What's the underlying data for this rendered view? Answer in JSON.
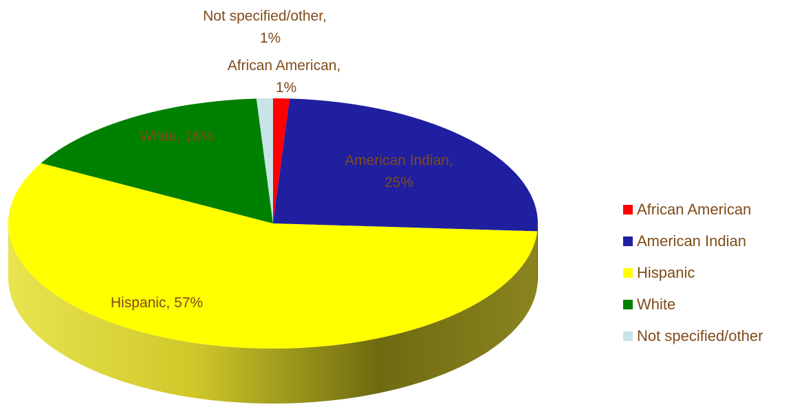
{
  "chart_data": {
    "type": "pie",
    "title": "",
    "three_d": true,
    "slices": [
      {
        "name": "African American",
        "value": 1,
        "color": "#ff0000",
        "side_color": "#b30000",
        "label_line1": "African American,",
        "label_line2": "1%"
      },
      {
        "name": "American Indian",
        "value": 25,
        "color": "#1f1fa0",
        "side_color": "#14146a",
        "label_line1": "American Indian,",
        "label_line2": "25%"
      },
      {
        "name": "Hispanic",
        "value": 57,
        "color": "#ffff00",
        "side_color": "#8a8400",
        "label_line1": "Hispanic, 57%",
        "label_line2": ""
      },
      {
        "name": "White",
        "value": 16,
        "color": "#008000",
        "side_color": "#005500",
        "label_line1": "White, 16%",
        "label_line2": ""
      },
      {
        "name": "Not specified/other",
        "value": 1,
        "color": "#c8e4e8",
        "side_color": "#8faab0",
        "label_line1": "Not specified/other,",
        "label_line2": "1%"
      }
    ],
    "legend": {
      "placement": "right",
      "items": [
        "African American",
        "American Indian",
        "Hispanic",
        "White",
        "Not specified/other"
      ]
    }
  }
}
